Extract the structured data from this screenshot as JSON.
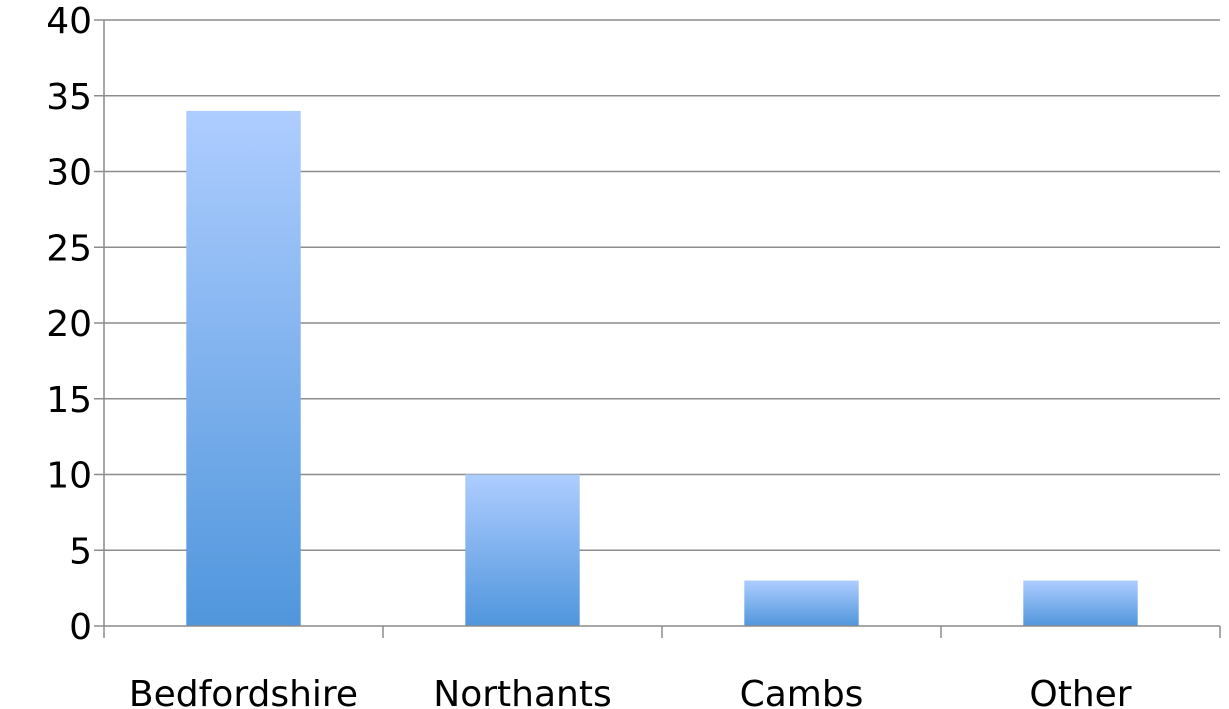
{
  "chart_data": {
    "type": "bar",
    "title": "",
    "xlabel": "",
    "ylabel": "",
    "categories": [
      "Bedfordshire",
      "Northants",
      "Cambs",
      "Other"
    ],
    "values": [
      34,
      10,
      3,
      3
    ],
    "ylim": [
      0,
      40
    ],
    "yticks": [
      0,
      5,
      10,
      15,
      20,
      25,
      30,
      35,
      40
    ],
    "grid": true,
    "legend": "none",
    "bar_color_top": "#aecdff",
    "bar_color_bottom": "#5096dc",
    "grid_color": "#8c8c8c"
  }
}
